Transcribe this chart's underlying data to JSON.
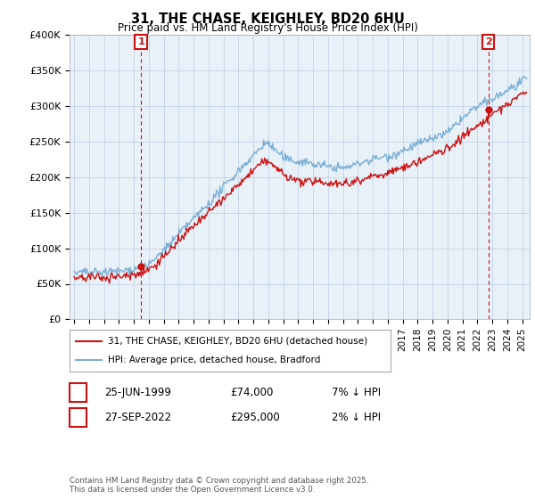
{
  "title": "31, THE CHASE, KEIGHLEY, BD20 6HU",
  "subtitle": "Price paid vs. HM Land Registry's House Price Index (HPI)",
  "ylim": [
    0,
    400000
  ],
  "yticks": [
    0,
    50000,
    100000,
    150000,
    200000,
    250000,
    300000,
    350000,
    400000
  ],
  "ytick_labels": [
    "£0",
    "£50K",
    "£100K",
    "£150K",
    "£200K",
    "£250K",
    "£300K",
    "£350K",
    "£400K"
  ],
  "xlim_start": 1994.7,
  "xlim_end": 2025.5,
  "purchase1_date": 1999.48,
  "purchase1_price": 74000,
  "purchase2_date": 2022.74,
  "purchase2_price": 295000,
  "hpi_color": "#7bafd4",
  "price_color": "#cc1111",
  "annotation_box_color": "#cc1111",
  "grid_color": "#c8d8e8",
  "plot_bg_color": "#e8f0f8",
  "background_color": "#ffffff",
  "legend_label_price": "31, THE CHASE, KEIGHLEY, BD20 6HU (detached house)",
  "legend_label_hpi": "HPI: Average price, detached house, Bradford",
  "annotation1_date": "25-JUN-1999",
  "annotation1_price": "£74,000",
  "annotation1_pct": "7% ↓ HPI",
  "annotation2_date": "27-SEP-2022",
  "annotation2_price": "£295,000",
  "annotation2_pct": "2% ↓ HPI",
  "footer": "Contains HM Land Registry data © Crown copyright and database right 2025.\nThis data is licensed under the Open Government Licence v3.0."
}
